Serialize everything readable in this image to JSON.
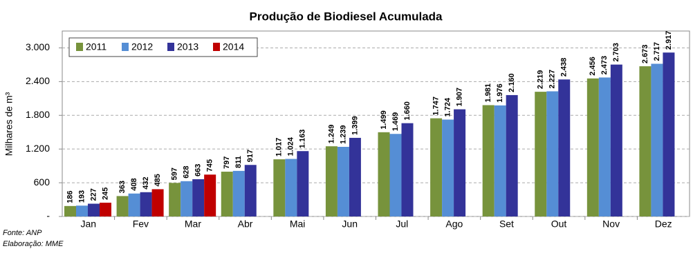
{
  "chart_data": {
    "type": "bar",
    "title": "Produção de Biodiesel Acumulada",
    "y_label": "Milhares de m³",
    "categories": [
      "Jan",
      "Fev",
      "Mar",
      "Abr",
      "Mai",
      "Jun",
      "Jul",
      "Ago",
      "Set",
      "Out",
      "Nov",
      "Dez"
    ],
    "series": [
      {
        "name": "2011",
        "color": "#77933c",
        "values": [
          186,
          363,
          597,
          797,
          1017,
          1249,
          1499,
          1747,
          1981,
          2219,
          2456,
          2673
        ],
        "value_labels": [
          "186",
          "363",
          "597",
          "797",
          "1.017",
          "1.249",
          "1.499",
          "1.747",
          "1.981",
          "2.219",
          "2.456",
          "2.673"
        ]
      },
      {
        "name": "2012",
        "color": "#558ed5",
        "values": [
          193,
          408,
          628,
          811,
          1024,
          1239,
          1469,
          1724,
          1976,
          2227,
          2473,
          2717
        ],
        "value_labels": [
          "193",
          "408",
          "628",
          "811",
          "1.024",
          "1.239",
          "1.469",
          "1.724",
          "1.976",
          "2.227",
          "2.473",
          "2.717"
        ]
      },
      {
        "name": "2013",
        "color": "#333399",
        "values": [
          227,
          432,
          663,
          917,
          1163,
          1399,
          1660,
          1907,
          2160,
          2438,
          2703,
          2917
        ],
        "value_labels": [
          "227",
          "432",
          "663",
          "917",
          "1.163",
          "1.399",
          "1.660",
          "1.907",
          "2.160",
          "2.438",
          "2.703",
          "2.917"
        ]
      },
      {
        "name": "2014",
        "color": "#c00000",
        "values": [
          245,
          485,
          745,
          null,
          null,
          null,
          null,
          null,
          null,
          null,
          null,
          null
        ],
        "value_labels": [
          "245",
          "485",
          "745",
          null,
          null,
          null,
          null,
          null,
          null,
          null,
          null,
          null
        ]
      }
    ],
    "ylim": [
      0,
      3300
    ],
    "yticks": [
      {
        "value": 0,
        "label": "-"
      },
      600,
      {
        "value": 1200,
        "label": "1.200"
      },
      {
        "value": 1800,
        "label": "1.800"
      },
      {
        "value": 2400,
        "label": "2.400"
      },
      {
        "value": 3000,
        "label": "3.000"
      }
    ],
    "grid": true,
    "legend": "top-left",
    "source": "Fonte: ANP",
    "credit": "Elaboração: MME"
  }
}
